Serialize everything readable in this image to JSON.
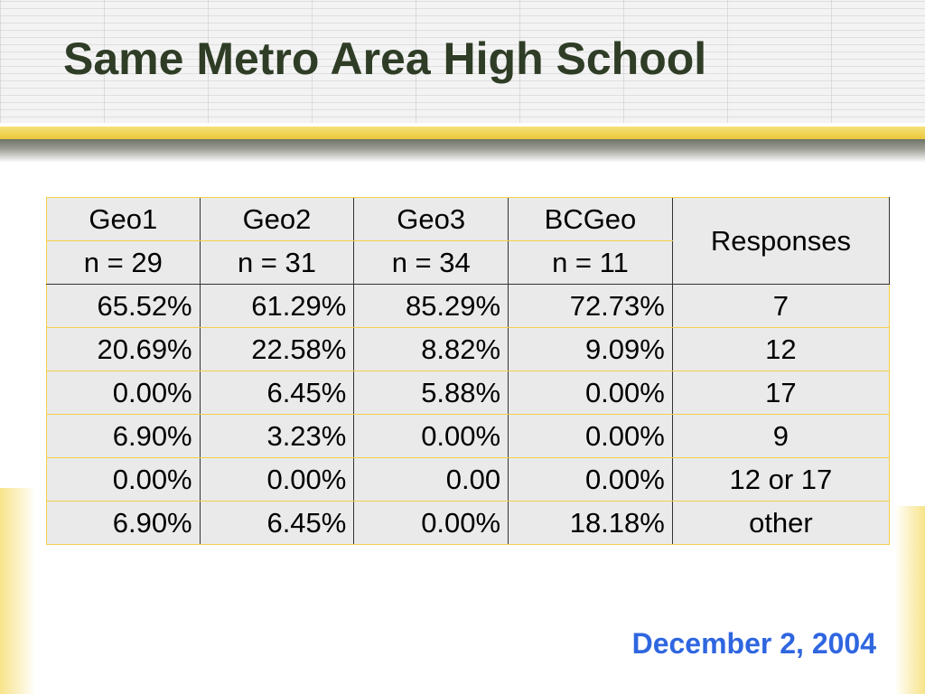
{
  "slide": {
    "title": "Same Metro Area High School",
    "date": "December 2, 2004",
    "accent_color": "#2f66e0",
    "title_color": "#2f3d26",
    "gold_color": "#e9c73a"
  },
  "table": {
    "headers": [
      "Geo1",
      "Geo2",
      "Geo3",
      "BCGeo",
      "Responses"
    ],
    "sample_sizes": [
      "n = 29",
      "n = 31",
      "n = 34",
      "n = 11"
    ],
    "rows": [
      [
        "65.52%",
        "61.29%",
        "85.29%",
        "72.73%",
        "7"
      ],
      [
        "20.69%",
        "22.58%",
        "8.82%",
        "9.09%",
        "12"
      ],
      [
        "0.00%",
        "6.45%",
        "5.88%",
        "0.00%",
        "17"
      ],
      [
        "6.90%",
        "3.23%",
        "0.00%",
        "0.00%",
        "9"
      ],
      [
        "0.00%",
        "0.00%",
        "0.00",
        "0.00%",
        "12 or 17"
      ],
      [
        "6.90%",
        "6.45%",
        "0.00%",
        "18.18%",
        "other"
      ]
    ]
  }
}
